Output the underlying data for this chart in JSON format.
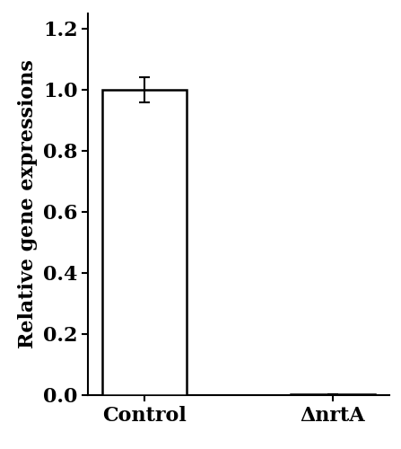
{
  "categories": [
    "Control",
    "ΔnrtA"
  ],
  "values": [
    1.0,
    0.003
  ],
  "errors": [
    0.04,
    0.0
  ],
  "bar_color": "#ffffff",
  "bar_edgecolor": "#000000",
  "bar_linewidth": 1.8,
  "ylabel": "Relative gene expressions",
  "ylim": [
    0,
    1.25
  ],
  "yticks": [
    0,
    0.2,
    0.4,
    0.6,
    0.8,
    1.0,
    1.2
  ],
  "bar_width": 0.45,
  "errorbar_color": "#000000",
  "errorbar_linewidth": 1.5,
  "errorbar_capsize": 4,
  "errorbar_capthick": 1.5,
  "tick_fontsize": 16,
  "ylabel_fontsize": 16,
  "xlabel_fontsize": 16,
  "background_color": "#ffffff",
  "spine_linewidth": 1.5,
  "font_weight": "bold"
}
